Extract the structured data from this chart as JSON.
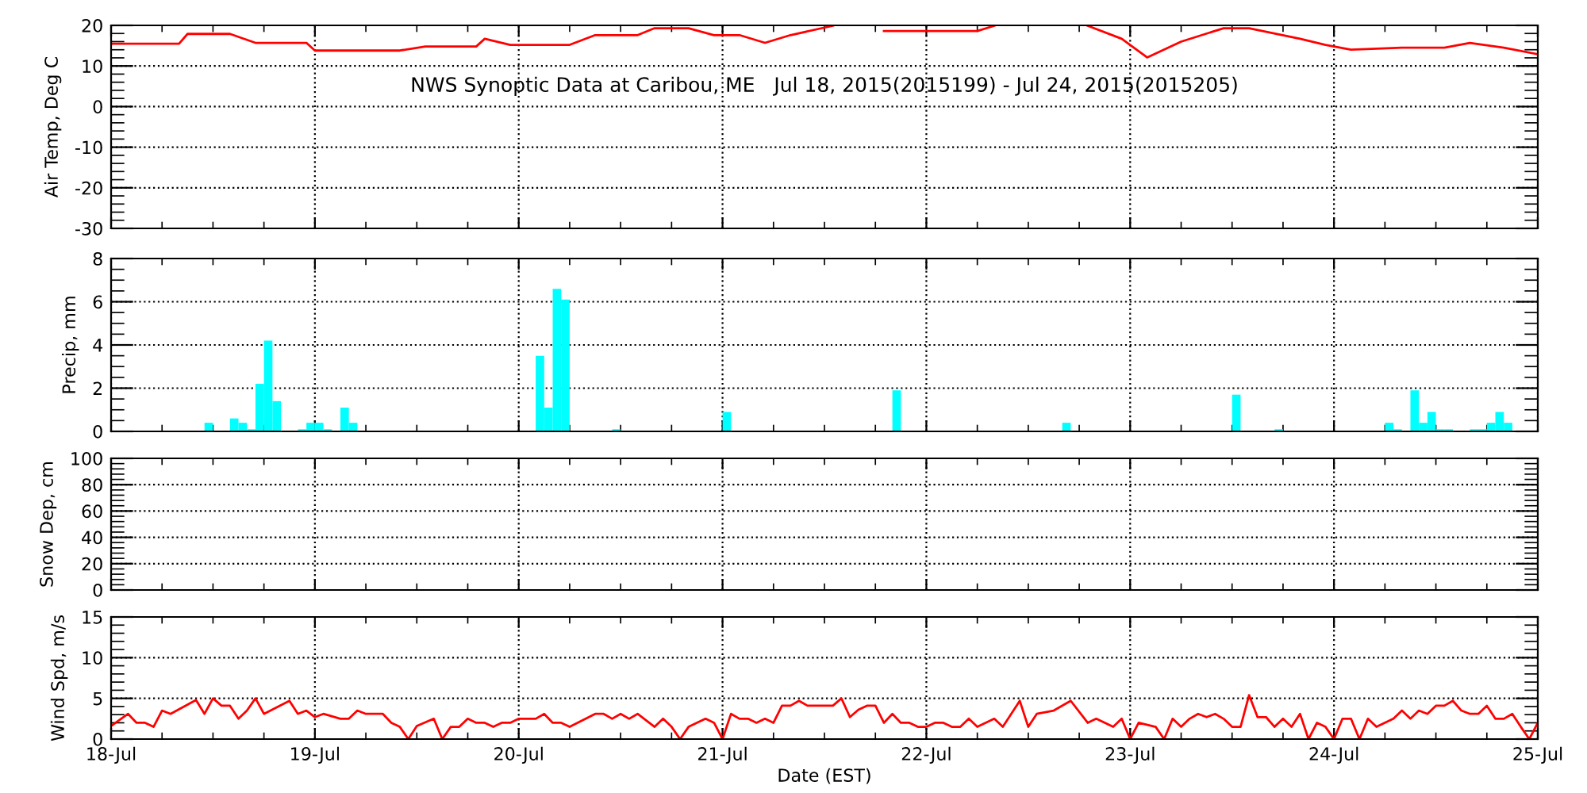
{
  "chart_data": [
    {
      "type": "line",
      "title": "NWS Synoptic Data at Caribou, ME   Jul 18, 2015(2015199) - Jul 24, 2015(2015205)",
      "ylabel": "Air Temp, Deg C",
      "color": "#ff0000",
      "grid": true,
      "tick_labels": "y",
      "xlim": [
        "2015-07-18",
        "2015-07-25"
      ],
      "xticks": [
        {
          "value": "2015-07-18",
          "label": null
        },
        {
          "value": "2015-07-19",
          "label": null
        },
        {
          "value": "2015-07-20",
          "label": null
        },
        {
          "value": "2015-07-21",
          "label": null
        },
        {
          "value": "2015-07-22",
          "label": null
        },
        {
          "value": "2015-07-23",
          "label": null
        },
        {
          "value": "2015-07-24",
          "label": null
        },
        {
          "value": "2015-07-25",
          "label": null
        }
      ],
      "ylim": [
        -30,
        20
      ],
      "yticks": [
        -30,
        -20,
        -10,
        0,
        10,
        20
      ],
      "x": [
        "2015-07-18T00:00",
        "2015-07-18T08:00",
        "2015-07-18T09:00",
        "2015-07-18T14:00",
        "2015-07-18T17:00",
        "2015-07-18T23:00",
        "2015-07-19T00:00",
        "2015-07-19T10:00",
        "2015-07-19T13:00",
        "2015-07-19T19:00",
        "2015-07-19T20:00",
        "2015-07-19T23:00",
        "2015-07-20T06:00",
        "2015-07-20T09:00",
        "2015-07-20T14:00",
        "2015-07-20T16:00",
        "2015-07-20T20:00",
        "2015-07-20T23:00",
        "2015-07-21T02:00",
        "2015-07-21T05:00",
        "2015-07-21T08:00",
        "2015-07-21T13:00",
        "2015-07-21T16:00",
        "2015-07-21T19:00",
        "2015-07-22T06:00",
        "2015-07-22T08:00",
        "2015-07-22T14:00",
        "2015-07-22T19:00",
        "2015-07-22T23:00",
        "2015-07-23T02:00",
        "2015-07-23T06:00",
        "2015-07-23T11:00",
        "2015-07-23T14:00",
        "2015-07-23T20:00",
        "2015-07-23T23:00",
        "2015-07-24T02:00",
        "2015-07-24T08:00",
        "2015-07-24T13:00",
        "2015-07-24T16:00",
        "2015-07-24T20:00",
        "2015-07-25T00:00"
      ],
      "values": [
        15.5,
        15.5,
        17.9,
        17.9,
        15.7,
        15.7,
        13.8,
        13.8,
        14.8,
        14.8,
        16.7,
        15.2,
        15.2,
        17.6,
        17.6,
        19.3,
        19.3,
        17.6,
        17.6,
        15.7,
        17.6,
        19.9,
        null,
        18.6,
        18.6,
        19.9,
        null,
        19.9,
        16.7,
        12.1,
        16.0,
        19.3,
        19.3,
        16.7,
        15.2,
        14.0,
        14.5,
        14.5,
        15.7,
        14.5,
        12.9
      ]
    },
    {
      "type": "bar",
      "ylabel": "Precip, mm",
      "color": "#00ffff",
      "grid": true,
      "tick_labels": "y",
      "xlim": [
        "2015-07-18",
        "2015-07-25"
      ],
      "xticks": [
        {
          "value": "2015-07-18",
          "label": null
        },
        {
          "value": "2015-07-19",
          "label": null
        },
        {
          "value": "2015-07-20",
          "label": null
        },
        {
          "value": "2015-07-21",
          "label": null
        },
        {
          "value": "2015-07-22",
          "label": null
        },
        {
          "value": "2015-07-23",
          "label": null
        },
        {
          "value": "2015-07-24",
          "label": null
        },
        {
          "value": "2015-07-25",
          "label": null
        }
      ],
      "ylim": [
        0,
        8
      ],
      "yticks": [
        0,
        2,
        4,
        6,
        8
      ],
      "x": [
        "2015-07-18T11:00",
        "2015-07-18T14:00",
        "2015-07-18T15:00",
        "2015-07-18T16:00",
        "2015-07-18T17:00",
        "2015-07-18T18:00",
        "2015-07-18T19:00",
        "2015-07-18T22:00",
        "2015-07-18T23:00",
        "2015-07-19T00:00",
        "2015-07-19T01:00",
        "2015-07-19T03:00",
        "2015-07-19T04:00",
        "2015-07-20T02:00",
        "2015-07-20T03:00",
        "2015-07-20T04:00",
        "2015-07-20T05:00",
        "2015-07-20T11:00",
        "2015-07-21T00:00",
        "2015-07-21T20:00",
        "2015-07-22T16:00",
        "2015-07-23T12:00",
        "2015-07-23T17:00",
        "2015-07-24T06:00",
        "2015-07-24T07:00",
        "2015-07-24T09:00",
        "2015-07-24T10:00",
        "2015-07-24T11:00",
        "2015-07-24T12:00",
        "2015-07-24T13:00",
        "2015-07-24T16:00",
        "2015-07-24T17:00",
        "2015-07-24T18:00",
        "2015-07-24T19:00",
        "2015-07-24T20:00"
      ],
      "values": [
        0.4,
        0.6,
        0.4,
        0.1,
        2.2,
        4.2,
        1.4,
        0.1,
        0.4,
        0.4,
        0.1,
        1.1,
        0.4,
        3.5,
        1.1,
        6.6,
        6.1,
        0.1,
        0.9,
        1.9,
        0.4,
        1.7,
        0.1,
        0.4,
        0.1,
        1.9,
        0.4,
        0.9,
        0.1,
        0.1,
        0.1,
        0.1,
        0.4,
        0.9,
        0.4
      ]
    },
    {
      "type": "line",
      "ylabel": "Snow Dep, cm",
      "grid": true,
      "tick_labels": "y",
      "xlim": [
        "2015-07-18",
        "2015-07-25"
      ],
      "xticks": [
        {
          "value": "2015-07-18",
          "label": null
        },
        {
          "value": "2015-07-19",
          "label": null
        },
        {
          "value": "2015-07-20",
          "label": null
        },
        {
          "value": "2015-07-21",
          "label": null
        },
        {
          "value": "2015-07-22",
          "label": null
        },
        {
          "value": "2015-07-23",
          "label": null
        },
        {
          "value": "2015-07-24",
          "label": null
        },
        {
          "value": "2015-07-25",
          "label": null
        }
      ],
      "ylim": [
        0,
        100
      ],
      "yticks": [
        0,
        20,
        40,
        60,
        80,
        100
      ]
    },
    {
      "type": "line",
      "ylabel": "Wind Spd, m/s",
      "xlabel": "Date (EST)",
      "color": "#ff0000",
      "grid": true,
      "xlim": [
        "2015-07-18",
        "2015-07-25"
      ],
      "xticks": [
        {
          "value": "2015-07-18",
          "label": "18-Jul"
        },
        {
          "value": "2015-07-19",
          "label": "19-Jul"
        },
        {
          "value": "2015-07-20",
          "label": "20-Jul"
        },
        {
          "value": "2015-07-21",
          "label": "21-Jul"
        },
        {
          "value": "2015-07-22",
          "label": "22-Jul"
        },
        {
          "value": "2015-07-23",
          "label": "23-Jul"
        },
        {
          "value": "2015-07-24",
          "label": "24-Jul"
        },
        {
          "value": "2015-07-25",
          "label": "25-Jul"
        }
      ],
      "ylim": [
        0,
        15
      ],
      "yticks": [
        0,
        5,
        10,
        15
      ],
      "x": [
        "2015-07-18T00:00",
        "2015-07-18T02:00",
        "2015-07-18T03:00",
        "2015-07-18T04:00",
        "2015-07-18T05:00",
        "2015-07-18T06:00",
        "2015-07-18T07:00",
        "2015-07-18T10:00",
        "2015-07-18T11:00",
        "2015-07-18T12:00",
        "2015-07-18T13:00",
        "2015-07-18T14:00",
        "2015-07-18T15:00",
        "2015-07-18T16:00",
        "2015-07-18T17:00",
        "2015-07-18T18:00",
        "2015-07-18T21:00",
        "2015-07-18T22:00",
        "2015-07-18T23:00",
        "2015-07-19T00:00",
        "2015-07-19T01:00",
        "2015-07-19T03:00",
        "2015-07-19T04:00",
        "2015-07-19T05:00",
        "2015-07-19T06:00",
        "2015-07-19T08:00",
        "2015-07-19T09:00",
        "2015-07-19T10:00",
        "2015-07-19T11:00",
        "2015-07-19T12:00",
        "2015-07-19T14:00",
        "2015-07-19T15:00",
        "2015-07-19T16:00",
        "2015-07-19T17:00",
        "2015-07-19T18:00",
        "2015-07-19T19:00",
        "2015-07-19T20:00",
        "2015-07-19T21:00",
        "2015-07-19T22:00",
        "2015-07-19T23:00",
        "2015-07-20T00:00",
        "2015-07-20T02:00",
        "2015-07-20T03:00",
        "2015-07-20T04:00",
        "2015-07-20T05:00",
        "2015-07-20T06:00",
        "2015-07-20T09:00",
        "2015-07-20T10:00",
        "2015-07-20T11:00",
        "2015-07-20T12:00",
        "2015-07-20T13:00",
        "2015-07-20T14:00",
        "2015-07-20T16:00",
        "2015-07-20T17:00",
        "2015-07-20T18:00",
        "2015-07-20T19:00",
        "2015-07-20T20:00",
        "2015-07-20T22:00",
        "2015-07-20T23:00",
        "2015-07-21T00:00",
        "2015-07-21T01:00",
        "2015-07-21T02:00",
        "2015-07-21T03:00",
        "2015-07-21T04:00",
        "2015-07-21T05:00",
        "2015-07-21T06:00",
        "2015-07-21T07:00",
        "2015-07-21T08:00",
        "2015-07-21T09:00",
        "2015-07-21T10:00",
        "2015-07-21T13:00",
        "2015-07-21T14:00",
        "2015-07-21T15:00",
        "2015-07-21T16:00",
        "2015-07-21T17:00",
        "2015-07-21T18:00",
        "2015-07-21T19:00",
        "2015-07-21T20:00",
        "2015-07-21T21:00",
        "2015-07-21T22:00",
        "2015-07-21T23:00",
        "2015-07-22T00:00",
        "2015-07-22T01:00",
        "2015-07-22T02:00",
        "2015-07-22T03:00",
        "2015-07-22T04:00",
        "2015-07-22T05:00",
        "2015-07-22T06:00",
        "2015-07-22T08:00",
        "2015-07-22T09:00",
        "2015-07-22T11:00",
        "2015-07-22T12:00",
        "2015-07-22T13:00",
        "2015-07-22T15:00",
        "2015-07-22T17:00",
        "2015-07-22T19:00",
        "2015-07-22T20:00",
        "2015-07-22T22:00",
        "2015-07-22T23:00",
        "2015-07-23T00:00",
        "2015-07-23T01:00",
        "2015-07-23T03:00",
        "2015-07-23T04:00",
        "2015-07-23T05:00",
        "2015-07-23T06:00",
        "2015-07-23T07:00",
        "2015-07-23T08:00",
        "2015-07-23T09:00",
        "2015-07-23T10:00",
        "2015-07-23T11:00",
        "2015-07-23T12:00",
        "2015-07-23T13:00",
        "2015-07-23T14:00",
        "2015-07-23T15:00",
        "2015-07-23T16:00",
        "2015-07-23T17:00",
        "2015-07-23T18:00",
        "2015-07-23T19:00",
        "2015-07-23T20:00",
        "2015-07-23T21:00",
        "2015-07-23T22:00",
        "2015-07-23T23:00",
        "2015-07-24T00:00",
        "2015-07-24T01:00",
        "2015-07-24T02:00",
        "2015-07-24T03:00",
        "2015-07-24T04:00",
        "2015-07-24T05:00",
        "2015-07-24T07:00",
        "2015-07-24T08:00",
        "2015-07-24T09:00",
        "2015-07-24T10:00",
        "2015-07-24T11:00",
        "2015-07-24T12:00",
        "2015-07-24T13:00",
        "2015-07-24T14:00",
        "2015-07-24T15:00",
        "2015-07-24T16:00",
        "2015-07-24T17:00",
        "2015-07-24T18:00",
        "2015-07-24T19:00",
        "2015-07-24T20:00",
        "2015-07-24T21:00",
        "2015-07-24T22:00",
        "2015-07-24T23:00",
        "2015-07-25T00:00"
      ],
      "values": [
        1.6,
        3.1,
        2.0,
        2.0,
        1.5,
        3.5,
        3.1,
        4.8,
        3.1,
        5.0,
        4.1,
        4.1,
        2.5,
        3.5,
        5.0,
        3.1,
        4.7,
        3.1,
        3.5,
        2.7,
        3.1,
        2.5,
        2.5,
        3.5,
        3.1,
        3.1,
        2.0,
        1.5,
        0,
        1.6,
        2.5,
        0,
        1.5,
        1.5,
        2.5,
        2.0,
        2.0,
        1.5,
        2.0,
        2.0,
        2.5,
        2.5,
        3.1,
        2.0,
        2.0,
        1.5,
        3.1,
        3.1,
        2.5,
        3.1,
        2.5,
        3.1,
        1.5,
        2.5,
        1.5,
        0,
        1.5,
        2.5,
        2.0,
        0,
        3.1,
        2.5,
        2.5,
        2.0,
        2.5,
        2.0,
        4.1,
        4.1,
        4.7,
        4.1,
        4.1,
        5.0,
        2.7,
        3.6,
        4.1,
        4.1,
        2.0,
        3.1,
        2.0,
        2.0,
        1.5,
        1.5,
        2.0,
        2.0,
        1.5,
        1.5,
        2.5,
        1.5,
        2.5,
        1.5,
        4.7,
        1.5,
        3.1,
        3.5,
        4.7,
        2.0,
        2.5,
        1.5,
        2.5,
        0,
        2.0,
        1.5,
        0,
        2.5,
        1.5,
        2.5,
        3.1,
        2.7,
        3.1,
        2.5,
        1.5,
        1.5,
        5.4,
        2.7,
        2.7,
        1.5,
        2.5,
        1.5,
        3.1,
        0,
        2.0,
        1.5,
        0,
        2.5,
        2.5,
        0,
        2.5,
        1.5,
        2.5,
        3.5,
        2.5,
        3.5,
        3.1,
        4.1,
        4.1,
        4.7,
        3.5,
        3.1,
        3.1,
        4.1,
        2.5,
        2.5,
        3.1,
        1.5,
        0,
        2.0
      ]
    }
  ]
}
